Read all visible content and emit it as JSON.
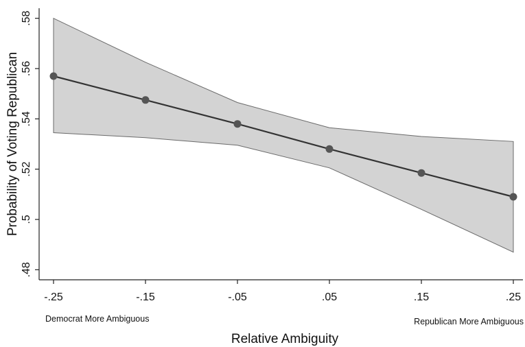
{
  "chart_data": {
    "type": "line",
    "xlabel": "Relative Ambiguity",
    "ylabel": "Probability of Voting Republican",
    "x": [
      -0.25,
      -0.15,
      -0.05,
      0.05,
      0.15,
      0.25
    ],
    "x_tick_labels": [
      "-.25",
      "-.15",
      "-.05",
      ".05",
      ".15",
      ".25"
    ],
    "y_ticks": [
      0.48,
      0.5,
      0.52,
      0.54,
      0.56,
      0.58
    ],
    "y_tick_labels": [
      ".48",
      ".5",
      ".52",
      ".54",
      ".56",
      ".58"
    ],
    "ylim": [
      0.476,
      0.584
    ],
    "xlim": [
      -0.25,
      0.25
    ],
    "series": [
      {
        "values": [
          0.557,
          0.5475,
          0.538,
          0.528,
          0.5185,
          0.509
        ],
        "ci_upper": [
          0.58,
          0.5625,
          0.5465,
          0.5365,
          0.533,
          0.531
        ],
        "ci_lower": [
          0.5345,
          0.5325,
          0.5295,
          0.5205,
          0.504,
          0.487
        ]
      }
    ],
    "annotations": {
      "left": "Democrat More Ambiguous",
      "right": "Republican More Ambiguous"
    },
    "grid": false,
    "legend": "none",
    "colors": {
      "band": "#d3d3d3",
      "band_edge": "#6a6a6a",
      "line": "#333333",
      "marker": "#555555"
    }
  }
}
